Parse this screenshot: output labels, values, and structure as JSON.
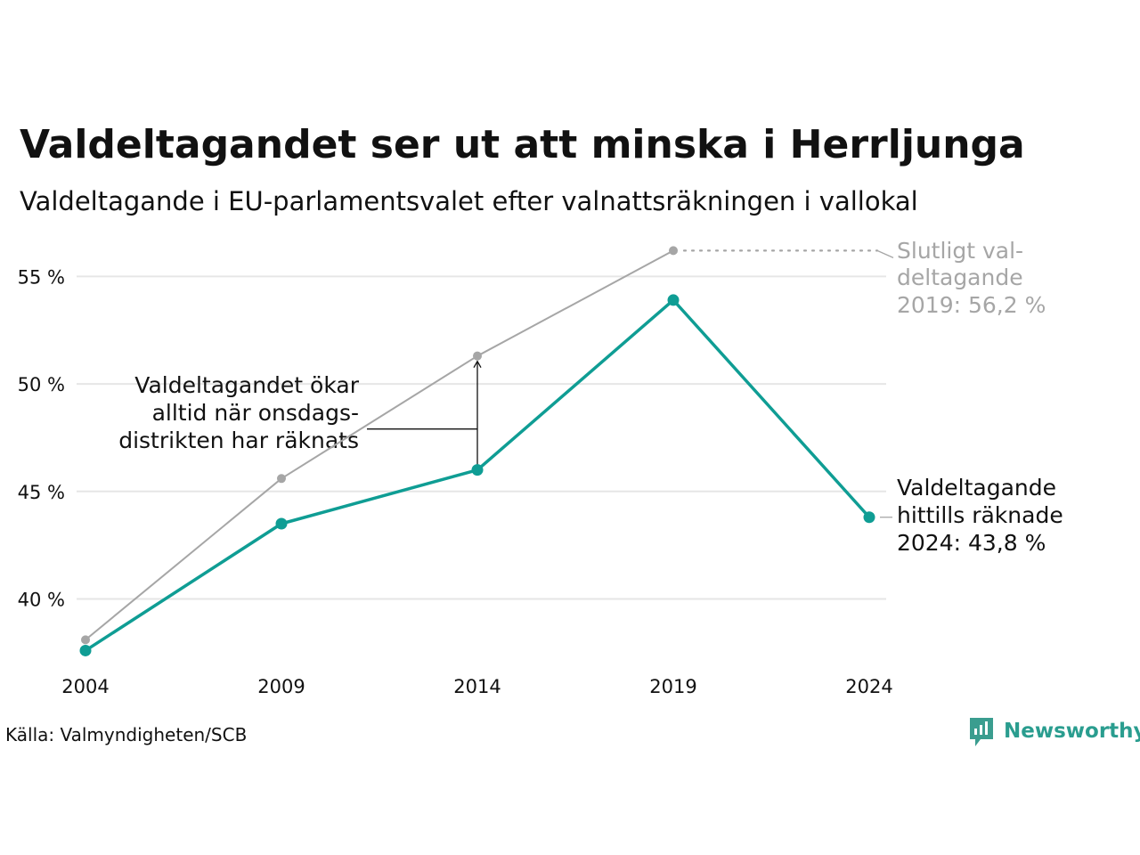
{
  "title": "Valdeltagandet ser ut att minska i Herrljunga",
  "subtitle": "Valdeltagande i EU-parlamentsvalet efter valnattsräkningen i vallokal",
  "source": "Källa: Valmyndigheten/SCB",
  "brand": {
    "name": "Newsworthy",
    "logo_icon": "bar-chart-speech-bubble-icon",
    "color": "#3a9d8f"
  },
  "annotations": {
    "final_turnout": [
      "Slutligt val-",
      "deltagande",
      "2019: 56,2 %"
    ],
    "counted_turnout": [
      "Valdeltagande",
      "hittills räknade",
      "2024: 43,8 %"
    ],
    "increase_note": [
      "Valdeltagandet ökar",
      "alltid när onsdags-",
      "distrikten har räknats"
    ]
  },
  "chart_data": {
    "type": "line",
    "x": [
      "2004",
      "2009",
      "2014",
      "2019",
      "2024"
    ],
    "ylim": [
      36.5,
      57.5
    ],
    "yticks": [
      40,
      45,
      50,
      55
    ],
    "ytick_labels": [
      "40 %",
      "45 %",
      "50 %",
      "55 %"
    ],
    "grid": true,
    "series": [
      {
        "key": "final",
        "color": "#a6a6a6",
        "values": [
          38.1,
          45.6,
          51.3,
          56.2,
          null
        ]
      },
      {
        "key": "election_night",
        "color": "#0f9d94",
        "values": [
          37.6,
          43.5,
          46.0,
          53.9,
          43.8
        ]
      }
    ]
  }
}
